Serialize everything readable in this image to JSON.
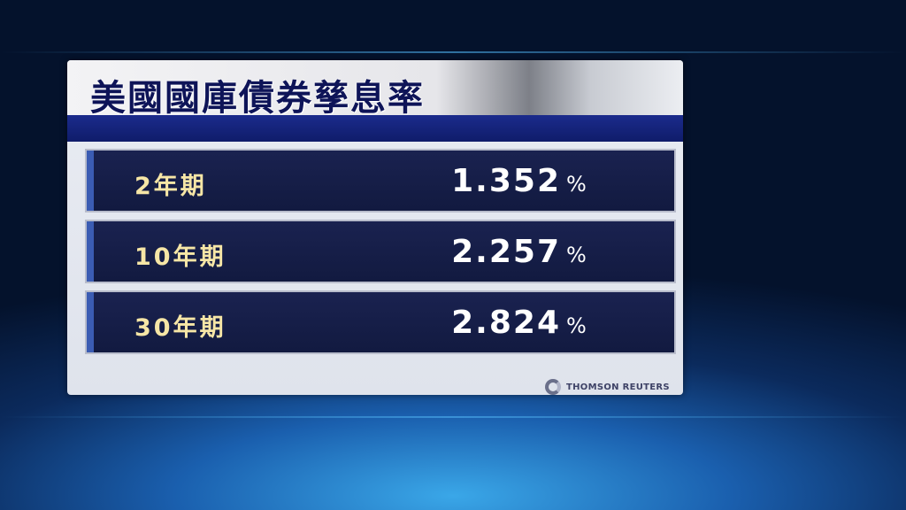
{
  "title": "美國國庫債券孳息率",
  "rows": [
    {
      "label": "2年期",
      "value": "1.352",
      "unit": "%"
    },
    {
      "label": "10年期",
      "value": "2.257",
      "unit": "%"
    },
    {
      "label": "30年期",
      "value": "2.824",
      "unit": "%"
    }
  ],
  "source": "THOMSON REUTERS",
  "colors": {
    "title": "#0e1458",
    "label": "#f6e6a6",
    "band": "#1b2b8c"
  }
}
